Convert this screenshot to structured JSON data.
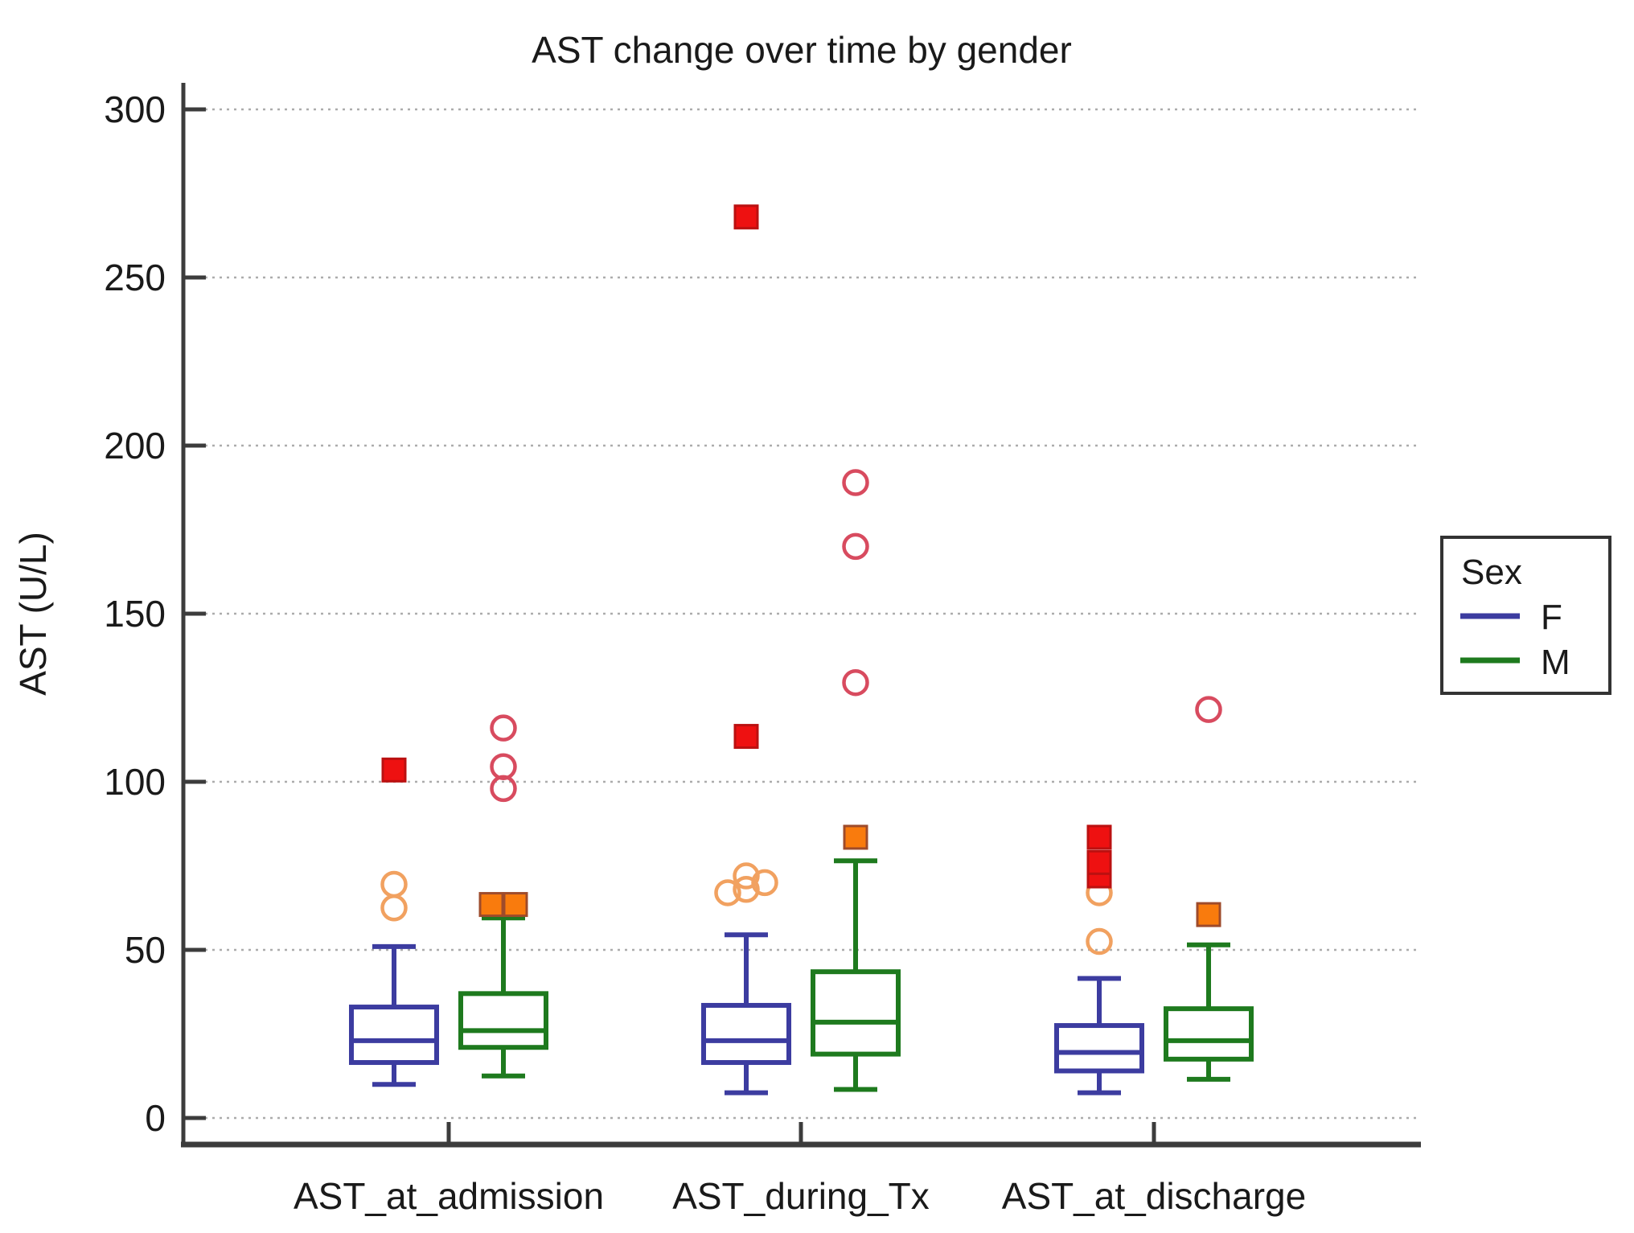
{
  "chart_data": {
    "type": "boxplot",
    "title": "AST change over time by gender",
    "ylabel": "AST (U/L)",
    "xlabel": "",
    "categories": [
      "AST_at_admission",
      "AST_during_Tx",
      "AST_at_discharge"
    ],
    "y_ticks": [
      0,
      50,
      100,
      150,
      200,
      250,
      300
    ],
    "ylim": [
      0,
      310
    ],
    "grid": "horizontal-dotted-every-50",
    "legend": {
      "title": "Sex",
      "position": "right",
      "entries": [
        {
          "label": "F",
          "color": "#3C3CA0"
        },
        {
          "label": "M",
          "color": "#1E7A1E"
        }
      ]
    },
    "colors": {
      "female_box": "#3C3CA0",
      "male_box": "#1E7A1E",
      "extreme_red_fill": "#EE1111",
      "extreme_red_stroke": "#BB1111",
      "mild_orange_fill": "#F97B0D",
      "mild_orange_stroke": "#9E4B2B",
      "open_circle_orange": "#F1A160",
      "open_circle_red": "#D84B5F",
      "gridline": "#ACACAC",
      "axis": "#3C3C3C"
    },
    "series": [
      {
        "name": "F",
        "color": "#3C3CA0",
        "boxes": [
          {
            "category": "AST_at_admission",
            "whisker_low": 10,
            "q1": 16.5,
            "median": 23,
            "q3": 33,
            "whisker_high": 51,
            "outliers": [
              {
                "value": 62.5,
                "marker": "circle",
                "fill": "none",
                "stroke": "#F1A160",
                "dx": 0
              },
              {
                "value": 69.5,
                "marker": "circle",
                "fill": "none",
                "stroke": "#F1A160",
                "dx": 0
              },
              {
                "value": 103.5,
                "marker": "square",
                "fill": "#EE1111",
                "stroke": "#BB1111",
                "dx": 0
              }
            ]
          },
          {
            "category": "AST_during_Tx",
            "whisker_low": 7.5,
            "q1": 16.5,
            "median": 23,
            "q3": 33.5,
            "whisker_high": 54.5,
            "outliers": [
              {
                "value": 67,
                "marker": "circle",
                "fill": "none",
                "stroke": "#F1A160",
                "dx": -23
              },
              {
                "value": 68,
                "marker": "circle",
                "fill": "none",
                "stroke": "#F1A160",
                "dx": 0
              },
              {
                "value": 72,
                "marker": "circle",
                "fill": "none",
                "stroke": "#F1A160",
                "dx": 0
              },
              {
                "value": 70,
                "marker": "circle",
                "fill": "none",
                "stroke": "#F1A160",
                "dx": 23
              },
              {
                "value": 113.5,
                "marker": "square",
                "fill": "#EE1111",
                "stroke": "#BB1111",
                "dx": 0
              },
              {
                "value": 268,
                "marker": "square",
                "fill": "#EE1111",
                "stroke": "#BB1111",
                "dx": 0
              }
            ]
          },
          {
            "category": "AST_at_discharge",
            "whisker_low": 7.5,
            "q1": 14,
            "median": 19.5,
            "q3": 27.5,
            "whisker_high": 41.5,
            "outliers": [
              {
                "value": 52.5,
                "marker": "circle",
                "fill": "none",
                "stroke": "#F1A160",
                "dx": 0
              },
              {
                "value": 67,
                "marker": "circle",
                "fill": "none",
                "stroke": "#F1A160",
                "dx": 0
              },
              {
                "value": 72,
                "marker": "square",
                "fill": "#EE1111",
                "stroke": "#BB1111",
                "dx": 0
              },
              {
                "value": 76,
                "marker": "square",
                "fill": "#EE1111",
                "stroke": "#BB1111",
                "dx": 0
              },
              {
                "value": 83.5,
                "marker": "square",
                "fill": "#EE1111",
                "stroke": "#BB1111",
                "dx": 0
              }
            ]
          }
        ]
      },
      {
        "name": "M",
        "color": "#1E7A1E",
        "boxes": [
          {
            "category": "AST_at_admission",
            "whisker_low": 12.5,
            "q1": 21,
            "median": 26,
            "q3": 37,
            "whisker_high": 59.5,
            "outliers": [
              {
                "value": 63.5,
                "marker": "square",
                "fill": "#F97B0D",
                "stroke": "#9E4B2B",
                "dx": -15
              },
              {
                "value": 63.5,
                "marker": "square",
                "fill": "#F97B0D",
                "stroke": "#9E4B2B",
                "dx": 15
              },
              {
                "value": 98,
                "marker": "circle",
                "fill": "none",
                "stroke": "#D84B5F",
                "dx": 0
              },
              {
                "value": 104.5,
                "marker": "circle",
                "fill": "none",
                "stroke": "#D84B5F",
                "dx": 0
              },
              {
                "value": 116,
                "marker": "circle",
                "fill": "none",
                "stroke": "#D84B5F",
                "dx": 0
              }
            ]
          },
          {
            "category": "AST_during_Tx",
            "whisker_low": 8.5,
            "q1": 19,
            "median": 28.5,
            "q3": 43.5,
            "whisker_high": 76.5,
            "outliers": [
              {
                "value": 83.5,
                "marker": "square",
                "fill": "#F97B0D",
                "stroke": "#9E4B2B",
                "dx": 0
              },
              {
                "value": 129.5,
                "marker": "circle",
                "fill": "none",
                "stroke": "#D84B5F",
                "dx": 0
              },
              {
                "value": 170,
                "marker": "circle",
                "fill": "none",
                "stroke": "#D84B5F",
                "dx": 0
              },
              {
                "value": 189,
                "marker": "circle",
                "fill": "none",
                "stroke": "#D84B5F",
                "dx": 0
              }
            ]
          },
          {
            "category": "AST_at_discharge",
            "whisker_low": 11.5,
            "q1": 17.5,
            "median": 23,
            "q3": 32.5,
            "whisker_high": 51.5,
            "outliers": [
              {
                "value": 60.5,
                "marker": "square",
                "fill": "#F97B0D",
                "stroke": "#9E4B2B",
                "dx": 0
              },
              {
                "value": 121.5,
                "marker": "circle",
                "fill": "none",
                "stroke": "#D84B5F",
                "dx": 0
              }
            ]
          }
        ]
      }
    ]
  }
}
